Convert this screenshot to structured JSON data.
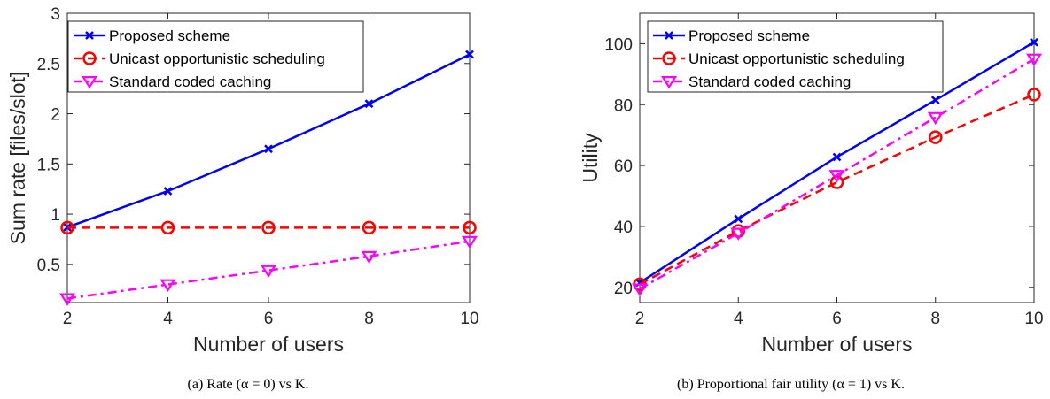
{
  "chart_data": [
    {
      "id": "a",
      "type": "line",
      "caption": "(a) Rate (α = 0) vs K.",
      "xlabel": "Number of users",
      "ylabel": "Sum rate [files/slot]",
      "x": [
        2,
        4,
        6,
        8,
        10
      ],
      "xlim": [
        2,
        10
      ],
      "ylim": [
        0.12,
        3
      ],
      "xticks": [
        2,
        4,
        6,
        8,
        10
      ],
      "yticks": [
        0.5,
        1,
        1.5,
        2,
        2.5,
        3
      ],
      "ytick_labels": [
        "0.5",
        "1",
        "1.5",
        "2",
        "2.5",
        "3"
      ],
      "legend_position": "top-left",
      "series": [
        {
          "name": "Proposed scheme",
          "values": [
            0.87,
            1.23,
            1.65,
            2.1,
            2.59
          ],
          "color": "#0000ff",
          "marker": "x",
          "dash": "solid"
        },
        {
          "name": "Unicast opportunistic scheduling",
          "values": [
            0.865,
            0.865,
            0.865,
            0.865,
            0.865
          ],
          "color": "#ff0000",
          "marker": "circle",
          "dash": "dashed"
        },
        {
          "name": "Standard coded caching",
          "values": [
            0.16,
            0.3,
            0.44,
            0.58,
            0.73
          ],
          "color": "#ff00ff",
          "marker": "triangle-down",
          "dash": "dashdot"
        }
      ]
    },
    {
      "id": "b",
      "type": "line",
      "caption": "(b) Proportional fair utility (α = 1) vs K.",
      "xlabel": "Number of users",
      "ylabel": "Utility",
      "x": [
        2,
        4,
        6,
        8,
        10
      ],
      "xlim": [
        2,
        10
      ],
      "ylim": [
        15,
        110
      ],
      "xticks": [
        2,
        4,
        6,
        8,
        10
      ],
      "yticks": [
        20,
        40,
        60,
        80,
        100
      ],
      "ytick_labels": [
        "20",
        "40",
        "60",
        "80",
        "100"
      ],
      "legend_position": "top-left",
      "series": [
        {
          "name": "Proposed scheme",
          "values": [
            21.5,
            42.5,
            62.8,
            81.5,
            100.5
          ],
          "color": "#0000ff",
          "marker": "x",
          "dash": "solid"
        },
        {
          "name": "Unicast opportunistic scheduling",
          "values": [
            21.0,
            38.5,
            54.5,
            69.3,
            83.3
          ],
          "color": "#ff0000",
          "marker": "circle",
          "dash": "dashed"
        },
        {
          "name": "Standard coded caching",
          "values": [
            19.5,
            37.8,
            56.8,
            75.8,
            95.0
          ],
          "color": "#ff00ff",
          "marker": "triangle-down",
          "dash": "dashdot"
        }
      ]
    }
  ]
}
